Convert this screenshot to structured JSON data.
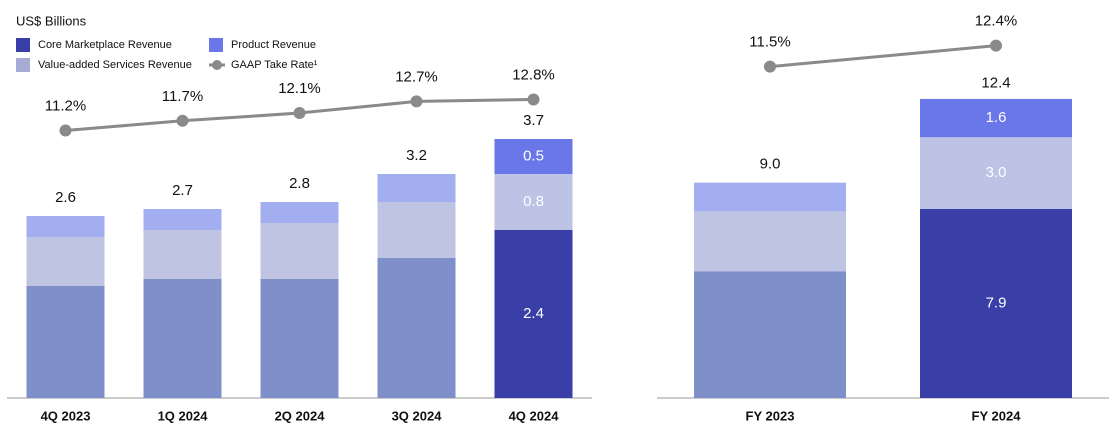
{
  "chart_data": [
    {
      "type": "bar",
      "stacked": true,
      "y_label": "US$ Billions",
      "legend": "top-left",
      "categories": [
        "4Q 2023",
        "1Q 2024",
        "2Q 2024",
        "3Q 2024",
        "4Q 2024"
      ],
      "ylim": [
        0,
        5.4
      ],
      "y2lim": [
        -2.6,
        16.9
      ],
      "totals": [
        2.6,
        2.7,
        2.8,
        3.2,
        3.7
      ],
      "series": [
        {
          "name": "Core Marketplace Revenue",
          "color": "#3a3fa8",
          "colors": [
            "#7f8fca",
            "#7f8fca",
            "#7f8fca",
            "#7f8fca",
            "#3a3fa8"
          ],
          "values": [
            1.6,
            1.7,
            1.7,
            2.0,
            2.4
          ],
          "value_labels": [
            null,
            null,
            null,
            null,
            "2.4"
          ]
        },
        {
          "name": "Value-added Services Revenue",
          "color": "#a7acd6",
          "colors": [
            "#bfc4e2",
            "#bfc4e2",
            "#bfc4e2",
            "#bfc4e2",
            "#bcc3e4"
          ],
          "values": [
            0.7,
            0.7,
            0.8,
            0.8,
            0.8
          ],
          "value_labels": [
            null,
            null,
            null,
            null,
            "0.8"
          ]
        },
        {
          "name": "Product Revenue",
          "color": "#6a77e8",
          "colors": [
            "#a3aef0",
            "#a3aef0",
            "#a3aef0",
            "#a3aef0",
            "#6a77e8"
          ],
          "values": [
            0.3,
            0.3,
            0.3,
            0.4,
            0.5
          ],
          "value_labels": [
            null,
            null,
            null,
            null,
            "0.5"
          ]
        },
        {
          "name": "GAAP Take Rate¹",
          "type": "line",
          "axis": "y2",
          "color": "#8a8a8a",
          "values": [
            11.2,
            11.7,
            12.1,
            12.7,
            12.8
          ],
          "value_labels": [
            "11.2%",
            "11.7%",
            "12.1%",
            "12.7%",
            "12.8%"
          ]
        }
      ]
    },
    {
      "type": "bar",
      "stacked": true,
      "categories": [
        "FY 2023",
        "FY 2024"
      ],
      "ylim": [
        0,
        15.8
      ],
      "y2lim": [
        -2.7,
        13.5
      ],
      "totals": [
        9,
        12.4
      ],
      "total_labels": [
        "9.0",
        "12.4"
      ],
      "series": [
        {
          "color": "#3a3fa8",
          "colors": [
            "#7f8fca",
            "#3a3fa8"
          ],
          "values": [
            5.3,
            7.9
          ],
          "value_labels": [
            null,
            "7.9"
          ]
        },
        {
          "color": "#a7acd6",
          "colors": [
            "#bfc4e2",
            "#bcc3e4"
          ],
          "values": [
            2.5,
            3
          ],
          "value_labels": [
            null,
            "3.0"
          ]
        },
        {
          "color": "#6a77e8",
          "colors": [
            "#a3aef0",
            "#6a77e8"
          ],
          "values": [
            1.2,
            1.6
          ],
          "value_labels": [
            null,
            "1.6"
          ]
        },
        {
          "type": "line",
          "axis": "y2",
          "color": "#8a8a8a",
          "values": [
            11.5,
            12.4
          ],
          "value_labels": [
            "11.5%",
            "12.4%"
          ]
        }
      ]
    }
  ]
}
